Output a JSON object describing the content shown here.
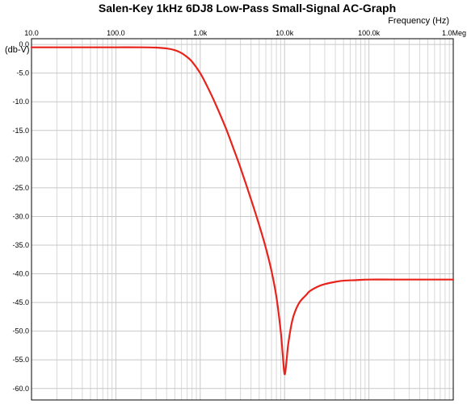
{
  "chart_data": {
    "type": "line",
    "title": "Salen-Key 1kHz 6DJ8 Low-Pass Small-Signal AC-Graph",
    "xlabel": "Frequency  (Hz)",
    "ylabel": "(db-V)",
    "xscale": "log",
    "xlim": [
      10,
      1000000
    ],
    "ylim": [
      -62,
      1
    ],
    "grid": true,
    "x_ticks": [
      {
        "value": 10,
        "label": "10.0"
      },
      {
        "value": 100,
        "label": "100.0"
      },
      {
        "value": 1000,
        "label": "1.0k"
      },
      {
        "value": 10000,
        "label": "10.0k"
      },
      {
        "value": 100000,
        "label": "100.0k"
      },
      {
        "value": 1000000,
        "label": "1.0Meg"
      }
    ],
    "y_ticks": [
      {
        "value": 0,
        "label": "0.0"
      },
      {
        "value": -5,
        "label": "-5.0"
      },
      {
        "value": -10,
        "label": "-10.0"
      },
      {
        "value": -15,
        "label": "-15.0"
      },
      {
        "value": -20,
        "label": "-20.0"
      },
      {
        "value": -25,
        "label": "-25.0"
      },
      {
        "value": -30,
        "label": "-30.0"
      },
      {
        "value": -35,
        "label": "-35.0"
      },
      {
        "value": -40,
        "label": "-40.0"
      },
      {
        "value": -45,
        "label": "-45.0"
      },
      {
        "value": -50,
        "label": "-50.0"
      },
      {
        "value": -55,
        "label": "-55.0"
      },
      {
        "value": -60,
        "label": "-60.0"
      }
    ],
    "series": [
      {
        "color": "#e8231c",
        "x": [
          10,
          50,
          100,
          200,
          300,
          400,
          500,
          600,
          700,
          800,
          1000,
          1200,
          1500,
          2000,
          2500,
          3000,
          4000,
          5000,
          6000,
          7000,
          8000,
          9000,
          9500,
          10000,
          10500,
          11000,
          12000,
          13000,
          15000,
          18000,
          20000,
          25000,
          30000,
          40000,
          50000,
          70000,
          100000,
          200000,
          500000,
          1000000
        ],
        "y": [
          -0.5,
          -0.5,
          -0.5,
          -0.5,
          -0.55,
          -0.7,
          -1.0,
          -1.5,
          -2.2,
          -3.0,
          -5.0,
          -7.2,
          -10.2,
          -14.5,
          -18.3,
          -21.5,
          -27.0,
          -31.5,
          -35.5,
          -39.5,
          -44.0,
          -50.0,
          -54.0,
          -57.5,
          -55.5,
          -52.5,
          -49.0,
          -47.0,
          -45.0,
          -43.7,
          -43.0,
          -42.2,
          -41.8,
          -41.4,
          -41.2,
          -41.1,
          -41.0,
          -41.0,
          -41.0,
          -41.0
        ]
      }
    ]
  },
  "colors": {
    "background": "#ffffff",
    "grid_major": "#c8c8c8",
    "grid_minor": "#d8d8d8",
    "axis": "#000000",
    "curve": "#e8231c"
  }
}
